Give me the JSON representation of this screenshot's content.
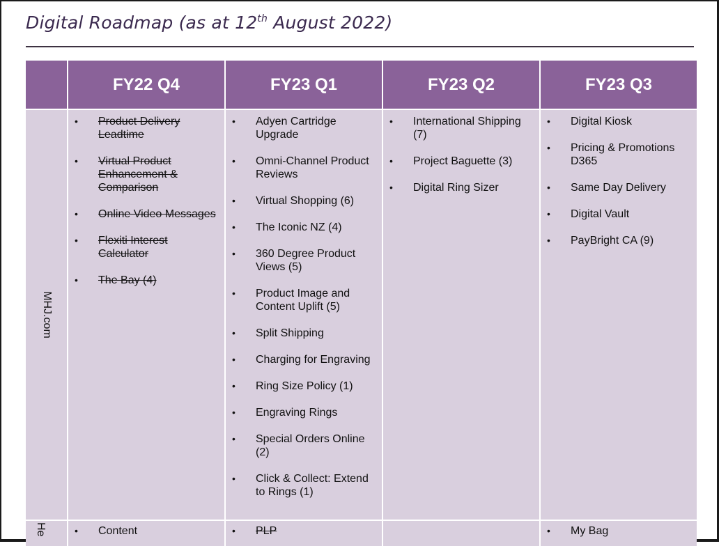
{
  "title": {
    "prefix": "Digital Roadmap (as at 12",
    "superscript": "th",
    "suffix": " August 2022)"
  },
  "columns": [
    "FY22 Q4",
    "FY23 Q1",
    "FY23 Q2",
    "FY23 Q3"
  ],
  "rows": [
    {
      "label": "MHJ.com",
      "cells": [
        [
          {
            "text": "Product Delivery Leadtime",
            "done": true
          },
          {
            "text": "Virtual Product Enhancement & Comparison",
            "done": true
          },
          {
            "text": "Online Video Messages",
            "done": true
          },
          {
            "text": "Flexiti Interest Calculator",
            "done": true
          },
          {
            "text": "The Bay (4)",
            "done": true
          }
        ],
        [
          {
            "text": "Adyen Cartridge Upgrade",
            "done": false
          },
          {
            "text": "Omni-Channel Product Reviews",
            "done": false
          },
          {
            "text": "Virtual Shopping (6)",
            "done": false
          },
          {
            "text": "The Iconic NZ (4)",
            "done": false
          },
          {
            "text": "360 Degree Product Views (5)",
            "done": false
          },
          {
            "text": "Product Image and Content Uplift (5)",
            "done": false
          },
          {
            "text": "Split Shipping",
            "done": false
          },
          {
            "text": "Charging for Engraving",
            "done": false
          },
          {
            "text": "Ring Size Policy (1)",
            "done": false
          },
          {
            "text": "Engraving Rings",
            "done": false
          },
          {
            "text": "Special Orders Online (2)",
            "done": false
          },
          {
            "text": "Click & Collect: Extend to Rings (1)",
            "done": false
          }
        ],
        [
          {
            "text": "International Shipping (7)",
            "done": false
          },
          {
            "text": "Project Baguette (3)",
            "done": false
          },
          {
            "text": "Digital Ring Sizer",
            "done": false
          }
        ],
        [
          {
            "text": "Digital Kiosk",
            "done": false
          },
          {
            "text": "Pricing & Promotions D365",
            "done": false
          },
          {
            "text": "Same Day Delivery",
            "done": false
          },
          {
            "text": "Digital Vault",
            "done": false
          },
          {
            "text": "PayBright CA (9)",
            "done": false
          }
        ]
      ]
    },
    {
      "label": "He",
      "cells": [
        [
          {
            "text": "Content",
            "done": false
          }
        ],
        [
          {
            "text": "PLP",
            "done": true
          }
        ],
        [],
        [
          {
            "text": "My Bag",
            "done": false
          }
        ]
      ]
    }
  ]
}
